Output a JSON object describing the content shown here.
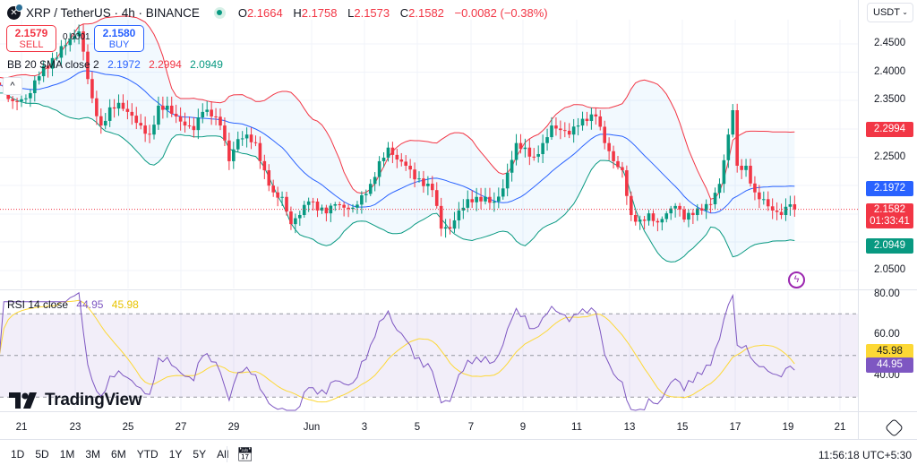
{
  "header": {
    "symbol_icon": "xrp-coin-icon",
    "title": "XRP / TetherUS · 4h · BINANCE",
    "market_status": "open",
    "open_label": "O",
    "open": "2.1664",
    "high_label": "H",
    "high": "2.1758",
    "low_label": "L",
    "low": "2.1573",
    "close_label": "C",
    "close": "2.1582",
    "change": "−0.0082 (−0.38%)"
  },
  "trade": {
    "sell_price": "2.1579",
    "sell_label": "SELL",
    "spread": "0.0001",
    "buy_price": "2.1580",
    "buy_label": "BUY"
  },
  "bb_legend": {
    "name": "BB 20 SMA close 2",
    "basis": "2.1972",
    "upper": "2.2994",
    "lower": "2.0949"
  },
  "rsi_legend": {
    "name": "RSI 14 close",
    "rsi": "44.95",
    "ma": "45.98"
  },
  "currency": "USDT",
  "price_axis": [
    "2.4500",
    "2.4000",
    "2.3500",
    "2.2500",
    "2.0500"
  ],
  "price_badges": {
    "upper": "2.2994",
    "basis": "2.1972",
    "last": "2.1582",
    "countdown": "01:33:41",
    "lower": "2.0949"
  },
  "rsi_axis": [
    "80.00",
    "60.00",
    "40.00"
  ],
  "rsi_badges": {
    "ma": "45.98",
    "rsi": "44.95"
  },
  "time_axis": [
    "21",
    "23",
    "25",
    "27",
    "29",
    "Jun",
    "3",
    "5",
    "7",
    "9",
    "11",
    "13",
    "15",
    "17",
    "19",
    "21"
  ],
  "ranges": [
    "1D",
    "5D",
    "1M",
    "3M",
    "6M",
    "YTD",
    "1Y",
    "5Y",
    "All"
  ],
  "clock": "11:56:18 UTC+5:30",
  "brand": "TradingView",
  "colors": {
    "up": "#089981",
    "down": "#f23645",
    "basis": "#2962ff",
    "upper": "#f23645",
    "lower": "#089981",
    "rsi": "#7e57c2",
    "rsi_ma": "#fdd835"
  },
  "chart_data": {
    "type": "candlestick",
    "interval": "4h",
    "price_range": [
      2.03,
      2.48
    ],
    "rsi_levels": [
      70,
      50,
      30
    ],
    "close_keyframes": [
      [
        "May 20 04:00",
        2.377
      ],
      [
        "May 20 16:00",
        2.349
      ],
      [
        "May 21 04:00",
        2.354
      ],
      [
        "May 21 16:00",
        2.393
      ],
      [
        "May 22 04:00",
        2.425
      ],
      [
        "May 22 16:00",
        2.448
      ],
      [
        "May 23 04:00",
        2.472
      ],
      [
        "May 23 16:00",
        2.354
      ],
      [
        "May 24 00:00",
        2.306
      ],
      [
        "May 24 08:00",
        2.338
      ],
      [
        "May 24 16:00",
        2.346
      ],
      [
        "May 25 00:00",
        2.33
      ],
      [
        "May 25 12:00",
        2.306
      ],
      [
        "May 25 20:00",
        2.29
      ],
      [
        "May 26 04:00",
        2.341
      ],
      [
        "May 26 12:00",
        2.341
      ],
      [
        "May 26 20:00",
        2.322
      ],
      [
        "May 27 04:00",
        2.306
      ],
      [
        "May 27 12:00",
        2.298
      ],
      [
        "May 27 20:00",
        2.33
      ],
      [
        "May 28 04:00",
        2.322
      ],
      [
        "May 28 12:00",
        2.306
      ],
      [
        "May 28 20:00",
        2.243
      ],
      [
        "May 29 04:00",
        2.282
      ],
      [
        "May 29 12:00",
        2.29
      ],
      [
        "May 29 20:00",
        2.275
      ],
      [
        "May 30 04:00",
        2.227
      ],
      [
        "May 30 12:00",
        2.188
      ],
      [
        "May 30 20:00",
        2.18
      ],
      [
        "May 31 04:00",
        2.132
      ],
      [
        "May 31 12:00",
        2.148
      ],
      [
        "May 31 20:00",
        2.172
      ],
      [
        "Jun 1 04:00",
        2.156
      ],
      [
        "Jun 1 12:00",
        2.151
      ],
      [
        "Jun 1 20:00",
        2.167
      ],
      [
        "Jun 2 04:00",
        2.161
      ],
      [
        "Jun 2 12:00",
        2.161
      ],
      [
        "Jun 2 20:00",
        2.183
      ],
      [
        "Jun 3 04:00",
        2.203
      ],
      [
        "Jun 3 12:00",
        2.243
      ],
      [
        "Jun 3 20:00",
        2.267
      ],
      [
        "Jun 4 04:00",
        2.246
      ],
      [
        "Jun 4 12:00",
        2.235
      ],
      [
        "Jun 4 20:00",
        2.211
      ],
      [
        "Jun 5 04:00",
        2.199
      ],
      [
        "Jun 5 12:00",
        2.192
      ],
      [
        "Jun 5 20:00",
        2.124
      ],
      [
        "Jun 6 04:00",
        2.124
      ],
      [
        "Jun 6 12:00",
        2.156
      ],
      [
        "Jun 6 20:00",
        2.176
      ],
      [
        "Jun 7 04:00",
        2.18
      ],
      [
        "Jun 7 12:00",
        2.18
      ],
      [
        "Jun 7 20:00",
        2.172
      ],
      [
        "Jun 8 04:00",
        2.195
      ],
      [
        "Jun 8 16:00",
        2.275
      ],
      [
        "Jun 9 00:00",
        2.267
      ],
      [
        "Jun 9 08:00",
        2.251
      ],
      [
        "Jun 9 16:00",
        2.275
      ],
      [
        "Jun 10 00:00",
        2.306
      ],
      [
        "Jun 10 08:00",
        2.298
      ],
      [
        "Jun 10 16:00",
        2.29
      ],
      [
        "Jun 11 00:00",
        2.306
      ],
      [
        "Jun 11 08:00",
        2.314
      ],
      [
        "Jun 11 16:00",
        2.322
      ],
      [
        "Jun 12 00:00",
        2.275
      ],
      [
        "Jun 12 08:00",
        2.243
      ],
      [
        "Jun 12 16:00",
        2.227
      ],
      [
        "Jun 13 00:00",
        2.148
      ],
      [
        "Jun 13 08:00",
        2.14
      ],
      [
        "Jun 13 16:00",
        2.151
      ],
      [
        "Jun 14 00:00",
        2.135
      ],
      [
        "Jun 14 08:00",
        2.151
      ],
      [
        "Jun 14 16:00",
        2.164
      ],
      [
        "Jun 15 00:00",
        2.14
      ],
      [
        "Jun 15 08:00",
        2.148
      ],
      [
        "Jun 15 16:00",
        2.156
      ],
      [
        "Jun 16 00:00",
        2.167
      ],
      [
        "Jun 16 08:00",
        2.203
      ],
      [
        "Jun 16 16:00",
        2.29
      ],
      [
        "Jun 16 20:00",
        2.333
      ],
      [
        "Jun 17 00:00",
        2.235
      ],
      [
        "Jun 17 08:00",
        2.235
      ],
      [
        "Jun 17 16:00",
        2.188
      ],
      [
        "Jun 18 00:00",
        2.176
      ],
      [
        "Jun 18 08:00",
        2.156
      ],
      [
        "Jun 18 16:00",
        2.148
      ],
      [
        "Jun 19 00:00",
        2.167
      ],
      [
        "Jun 19 04:00",
        2.1582
      ]
    ]
  }
}
